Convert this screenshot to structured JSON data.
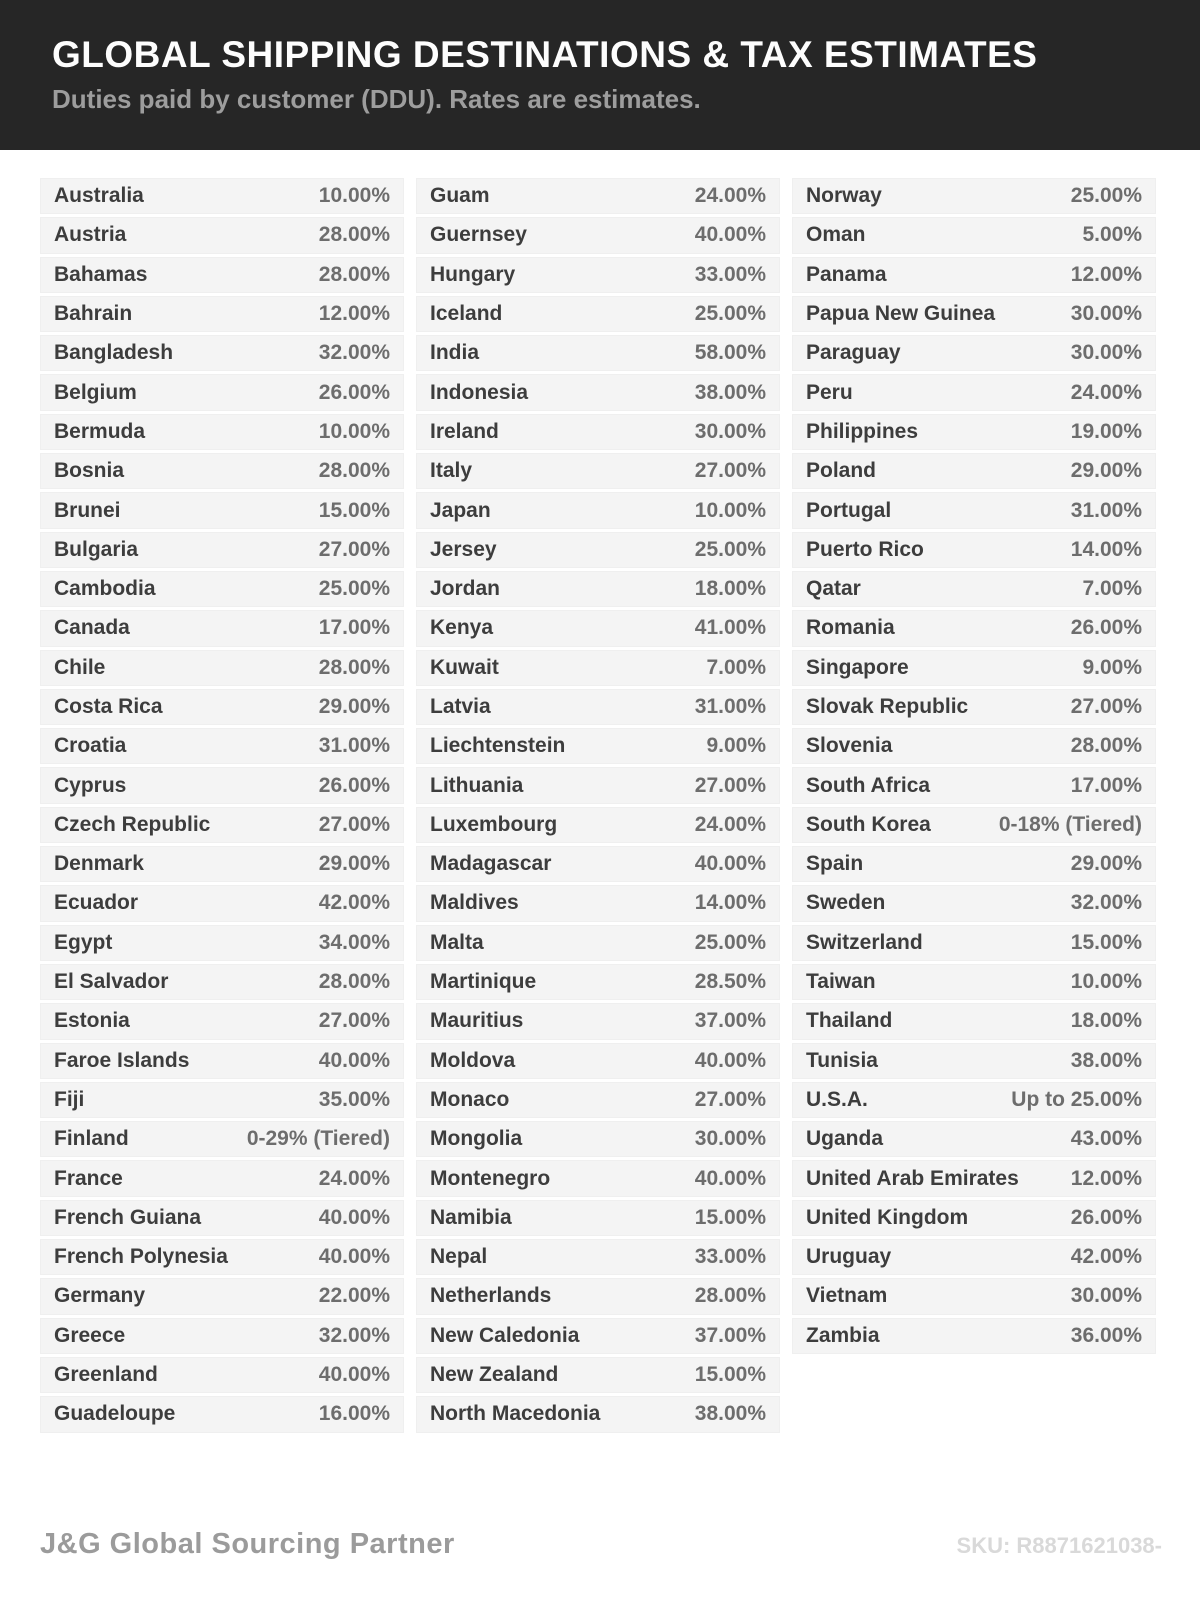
{
  "header": {
    "title": "GLOBAL SHIPPING DESTINATIONS & TAX ESTIMATES",
    "subtitle": "Duties paid by customer (DDU). Rates are estimates."
  },
  "colors": {
    "header_bg": "#262626",
    "title_text": "#fdfdfd",
    "subtitle_text": "#9d9d9d",
    "row_bg": "#f4f4f4",
    "country_text": "#3d3d3d",
    "rate_text": "#6d6d6d",
    "brand_text": "#9b9b9b",
    "sku_text": "#d9d9d9"
  },
  "table": {
    "columns": [
      {
        "rows": [
          {
            "country": "Australia",
            "rate": "10.00%"
          },
          {
            "country": "Austria",
            "rate": "28.00%"
          },
          {
            "country": "Bahamas",
            "rate": "28.00%"
          },
          {
            "country": "Bahrain",
            "rate": "12.00%"
          },
          {
            "country": "Bangladesh",
            "rate": "32.00%"
          },
          {
            "country": "Belgium",
            "rate": "26.00%"
          },
          {
            "country": "Bermuda",
            "rate": "10.00%"
          },
          {
            "country": "Bosnia",
            "rate": "28.00%"
          },
          {
            "country": "Brunei",
            "rate": "15.00%"
          },
          {
            "country": "Bulgaria",
            "rate": "27.00%"
          },
          {
            "country": "Cambodia",
            "rate": "25.00%"
          },
          {
            "country": "Canada",
            "rate": "17.00%"
          },
          {
            "country": "Chile",
            "rate": "28.00%"
          },
          {
            "country": "Costa Rica",
            "rate": "29.00%"
          },
          {
            "country": "Croatia",
            "rate": "31.00%"
          },
          {
            "country": "Cyprus",
            "rate": "26.00%"
          },
          {
            "country": "Czech Republic",
            "rate": "27.00%"
          },
          {
            "country": "Denmark",
            "rate": "29.00%"
          },
          {
            "country": "Ecuador",
            "rate": "42.00%"
          },
          {
            "country": "Egypt",
            "rate": "34.00%"
          },
          {
            "country": "El Salvador",
            "rate": "28.00%"
          },
          {
            "country": "Estonia",
            "rate": "27.00%"
          },
          {
            "country": "Faroe Islands",
            "rate": "40.00%"
          },
          {
            "country": "Fiji",
            "rate": "35.00%"
          },
          {
            "country": "Finland",
            "rate": "0-29% (Tiered)"
          },
          {
            "country": "France",
            "rate": "24.00%"
          },
          {
            "country": "French Guiana",
            "rate": "40.00%"
          },
          {
            "country": "French Polynesia",
            "rate": "40.00%"
          },
          {
            "country": "Germany",
            "rate": "22.00%"
          },
          {
            "country": "Greece",
            "rate": "32.00%"
          },
          {
            "country": "Greenland",
            "rate": "40.00%"
          },
          {
            "country": "Guadeloupe",
            "rate": "16.00%"
          }
        ]
      },
      {
        "rows": [
          {
            "country": "Guam",
            "rate": "24.00%"
          },
          {
            "country": "Guernsey",
            "rate": "40.00%"
          },
          {
            "country": "Hungary",
            "rate": "33.00%"
          },
          {
            "country": "Iceland",
            "rate": "25.00%"
          },
          {
            "country": "India",
            "rate": "58.00%"
          },
          {
            "country": "Indonesia",
            "rate": "38.00%"
          },
          {
            "country": "Ireland",
            "rate": "30.00%"
          },
          {
            "country": "Italy",
            "rate": "27.00%"
          },
          {
            "country": "Japan",
            "rate": "10.00%"
          },
          {
            "country": "Jersey",
            "rate": "25.00%"
          },
          {
            "country": "Jordan",
            "rate": "18.00%"
          },
          {
            "country": "Kenya",
            "rate": "41.00%"
          },
          {
            "country": "Kuwait",
            "rate": "7.00%"
          },
          {
            "country": "Latvia",
            "rate": "31.00%"
          },
          {
            "country": "Liechtenstein",
            "rate": "9.00%"
          },
          {
            "country": "Lithuania",
            "rate": "27.00%"
          },
          {
            "country": "Luxembourg",
            "rate": "24.00%"
          },
          {
            "country": "Madagascar",
            "rate": "40.00%"
          },
          {
            "country": "Maldives",
            "rate": "14.00%"
          },
          {
            "country": "Malta",
            "rate": "25.00%"
          },
          {
            "country": "Martinique",
            "rate": "28.50%"
          },
          {
            "country": "Mauritius",
            "rate": "37.00%"
          },
          {
            "country": "Moldova",
            "rate": "40.00%"
          },
          {
            "country": "Monaco",
            "rate": "27.00%"
          },
          {
            "country": "Mongolia",
            "rate": "30.00%"
          },
          {
            "country": "Montenegro",
            "rate": "40.00%"
          },
          {
            "country": "Namibia",
            "rate": "15.00%"
          },
          {
            "country": "Nepal",
            "rate": "33.00%"
          },
          {
            "country": "Netherlands",
            "rate": "28.00%"
          },
          {
            "country": "New Caledonia",
            "rate": "37.00%"
          },
          {
            "country": "New Zealand",
            "rate": "15.00%"
          },
          {
            "country": "North Macedonia",
            "rate": "38.00%"
          }
        ]
      },
      {
        "rows": [
          {
            "country": "Norway",
            "rate": "25.00%"
          },
          {
            "country": "Oman",
            "rate": "5.00%"
          },
          {
            "country": "Panama",
            "rate": "12.00%"
          },
          {
            "country": "Papua New Guinea",
            "rate": "30.00%"
          },
          {
            "country": "Paraguay",
            "rate": "30.00%"
          },
          {
            "country": "Peru",
            "rate": "24.00%"
          },
          {
            "country": "Philippines",
            "rate": "19.00%"
          },
          {
            "country": "Poland",
            "rate": "29.00%"
          },
          {
            "country": "Portugal",
            "rate": "31.00%"
          },
          {
            "country": "Puerto Rico",
            "rate": "14.00%"
          },
          {
            "country": "Qatar",
            "rate": "7.00%"
          },
          {
            "country": "Romania",
            "rate": "26.00%"
          },
          {
            "country": "Singapore",
            "rate": "9.00%"
          },
          {
            "country": "Slovak Republic",
            "rate": "27.00%"
          },
          {
            "country": "Slovenia",
            "rate": "28.00%"
          },
          {
            "country": "South Africa",
            "rate": "17.00%"
          },
          {
            "country": "South Korea",
            "rate": "0-18% (Tiered)"
          },
          {
            "country": "Spain",
            "rate": "29.00%"
          },
          {
            "country": "Sweden",
            "rate": "32.00%"
          },
          {
            "country": "Switzerland",
            "rate": "15.00%"
          },
          {
            "country": "Taiwan",
            "rate": "10.00%"
          },
          {
            "country": "Thailand",
            "rate": "18.00%"
          },
          {
            "country": "Tunisia",
            "rate": "38.00%"
          },
          {
            "country": "U.S.A.",
            "rate": "Up to 25.00%"
          },
          {
            "country": "Uganda",
            "rate": "43.00%"
          },
          {
            "country": "United Arab Emirates",
            "rate": "12.00%"
          },
          {
            "country": "United Kingdom",
            "rate": "26.00%"
          },
          {
            "country": "Uruguay",
            "rate": "42.00%"
          },
          {
            "country": "Vietnam",
            "rate": "30.00%"
          },
          {
            "country": "Zambia",
            "rate": "36.00%"
          }
        ]
      }
    ]
  },
  "footer": {
    "brand": "J&G Global Sourcing Partner",
    "sku": "SKU: R8871621038-"
  }
}
